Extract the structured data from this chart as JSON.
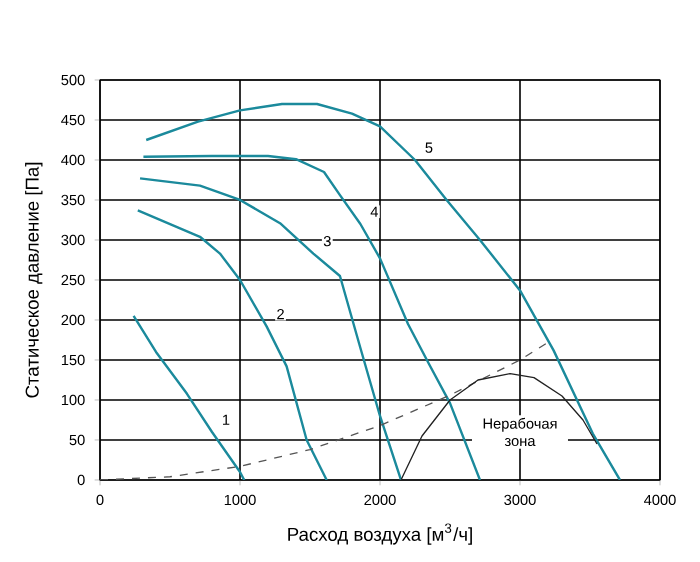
{
  "chart_data": {
    "type": "line",
    "xlabel": "Расход воздуха [м$^{3}$/ч]",
    "ylabel": "Статическое давление [Па]",
    "xlim": [
      0,
      4000
    ],
    "ylim": [
      0,
      500
    ],
    "xticks": [
      0,
      1000,
      2000,
      3000,
      4000
    ],
    "yticks": [
      0,
      50,
      100,
      150,
      200,
      250,
      300,
      350,
      400,
      450,
      500
    ],
    "grid": true,
    "legend": false,
    "marker": "none",
    "series": [
      {
        "name": "1",
        "color": "#1b8a9c",
        "x": [
          240,
          400,
          620,
          800,
          1000,
          1030
        ],
        "values": [
          205,
          160,
          108,
          60,
          10,
          0
        ]
      },
      {
        "name": "2",
        "color": "#1b8a9c",
        "x": [
          270,
          714,
          857,
          1000,
          1190,
          1333,
          1476,
          1619
        ],
        "values": [
          337,
          304,
          283,
          250,
          192,
          142,
          50,
          0
        ]
      },
      {
        "name": "3",
        "color": "#1b8a9c",
        "x": [
          286,
          714,
          1000,
          1286,
          1524,
          1714,
          1860,
          2000,
          2150
        ],
        "values": [
          377,
          368,
          350,
          321,
          283,
          255,
          165,
          80,
          0
        ]
      },
      {
        "name": "4",
        "color": "#1b8a9c",
        "x": [
          310,
          800,
          1200,
          1400,
          1600,
          1714,
          1860,
          2000,
          2200,
          2350,
          2500,
          2714
        ],
        "values": [
          404,
          405,
          405,
          401,
          385,
          356,
          320,
          277,
          195,
          145,
          96,
          0
        ]
      },
      {
        "name": "5",
        "color": "#1b8a9c",
        "x": [
          330,
          700,
          1000,
          1300,
          1550,
          1800,
          2000,
          2250,
          2476,
          2714,
          3000,
          3240,
          3520,
          3714
        ],
        "values": [
          425,
          448,
          462,
          470,
          470,
          458,
          442,
          400,
          350,
          300,
          237,
          162,
          58,
          0
        ]
      },
      {
        "color": "#555555",
        "line_style": "dashed",
        "x": [
          0,
          500,
          1000,
          1500,
          2000,
          2500,
          3000,
          3200
        ],
        "values": [
          0,
          4,
          17,
          38,
          68,
          106,
          150,
          172
        ]
      },
      {
        "color": "#222222",
        "x": [
          2150,
          2300,
          2500,
          2700,
          2930,
          3100,
          3300,
          3450,
          3550
        ],
        "values": [
          0,
          55,
          100,
          125,
          133,
          128,
          105,
          75,
          45
        ]
      }
    ],
    "annotations": [
      "Нерабочая зона"
    ]
  }
}
